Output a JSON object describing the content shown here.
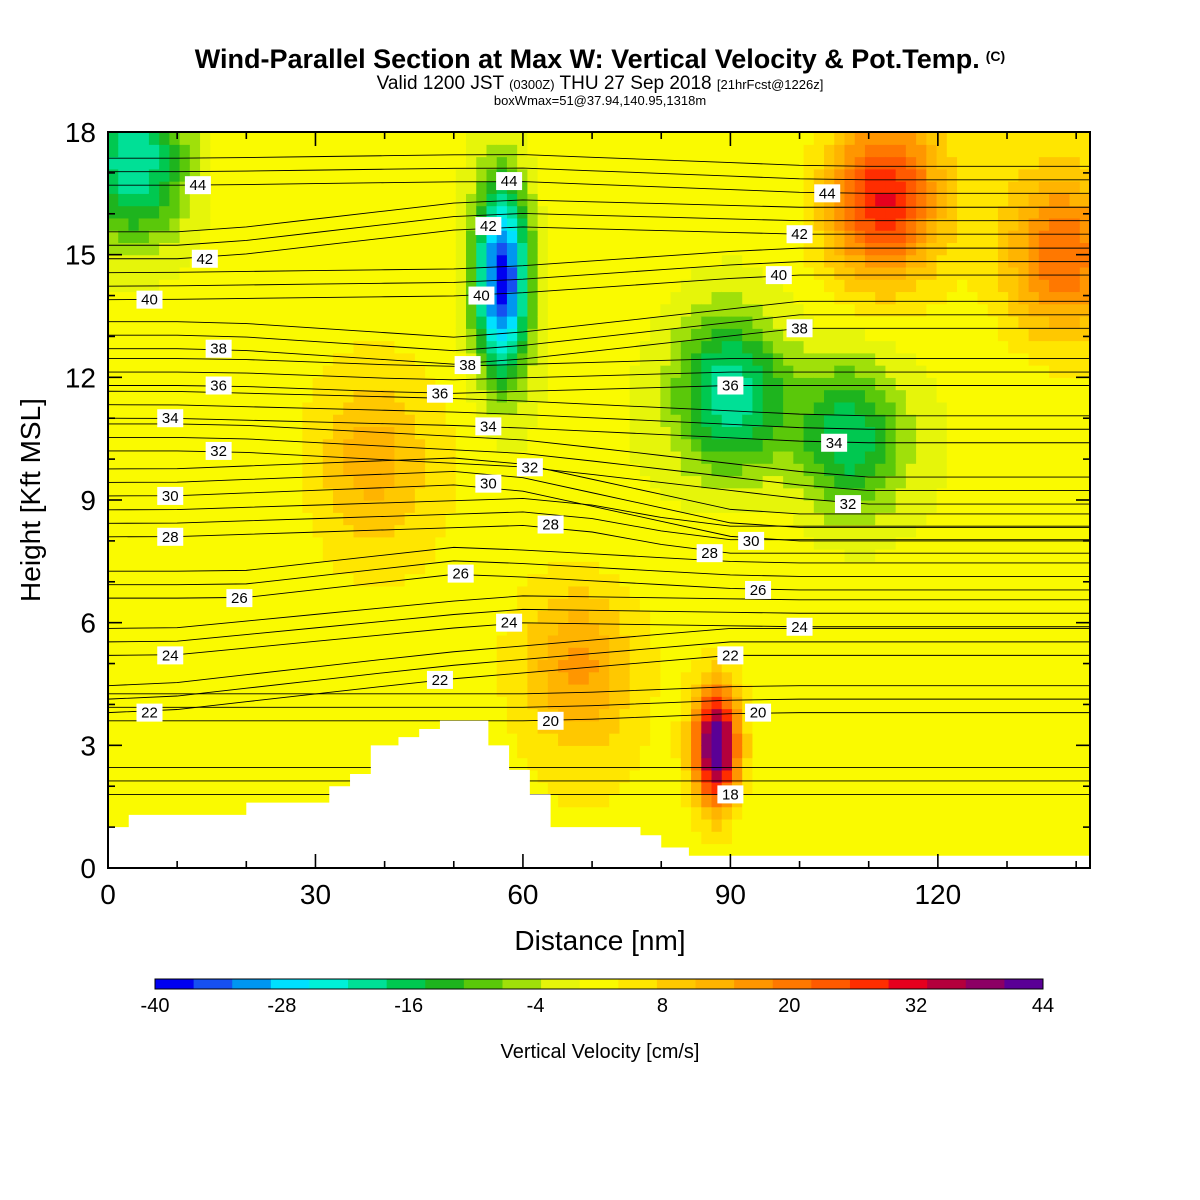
{
  "header": {
    "title": "Wind-Parallel Section at Max W: Vertical Velocity & Pot.Temp.",
    "copyright": "(C)",
    "valid_prefix": "Valid 1200 JST",
    "valid_utc": "(0300Z)",
    "valid_date": "THU 27 Sep 2018",
    "forecast": "[21hrFcst@1226z]",
    "box_info": "boxWmax=51@37.94,140.95,1318m"
  },
  "chart_data": {
    "type": "heatmap",
    "xlabel": "Distance [nm]",
    "ylabel": "Height [Kft MSL]",
    "xlim": [
      0,
      142
    ],
    "ylim": [
      0,
      18
    ],
    "x_ticks": [
      0,
      30,
      60,
      90,
      120
    ],
    "y_ticks": [
      0,
      3,
      6,
      9,
      12,
      15,
      18
    ],
    "grid": false,
    "colorbar": {
      "label": "Vertical Velocity [cm/s]",
      "range": [
        -40,
        44
      ],
      "tick_labels": [
        "-40",
        "-28",
        "-16",
        "-4",
        "8",
        "20",
        "32",
        "44"
      ],
      "colors": [
        "#0000f0",
        "#1650f0",
        "#0096f0",
        "#00e0ff",
        "#00f0d8",
        "#00e096",
        "#00c850",
        "#1eb41e",
        "#5ac80a",
        "#a0e00a",
        "#e6f50a",
        "#fafa00",
        "#ffe600",
        "#ffc800",
        "#ffb400",
        "#ff9600",
        "#ff7800",
        "#ff5a00",
        "#ff2d00",
        "#e6001e",
        "#b4003c",
        "#8c0064",
        "#5a0096"
      ]
    },
    "vertical_velocity_features": [
      {
        "name": "downdraft core",
        "x": 57,
        "y": 14.4,
        "value": -40
      },
      {
        "name": "downdraft",
        "x": 90,
        "y": 11.6,
        "value": -24
      },
      {
        "name": "downdraft",
        "x": 4,
        "y": 17.3,
        "value": -24
      },
      {
        "name": "downdraft",
        "x": 107,
        "y": 10.5,
        "value": -20
      },
      {
        "name": "updraft core",
        "x": 88,
        "y": 3.0,
        "value": 44
      },
      {
        "name": "updraft",
        "x": 112,
        "y": 16.4,
        "value": 28
      },
      {
        "name": "updraft",
        "x": 138,
        "y": 15.0,
        "value": 20
      },
      {
        "name": "updraft",
        "x": 68,
        "y": 5.0,
        "value": 14
      },
      {
        "name": "updraft",
        "x": 38,
        "y": 10.0,
        "value": 10
      }
    ],
    "terrain_profile": {
      "x": [
        0,
        3,
        3,
        20,
        20,
        32,
        32,
        35,
        35,
        38,
        38,
        42,
        42,
        45,
        45,
        48,
        48,
        55,
        55,
        58,
        58,
        61,
        61,
        64,
        64,
        77,
        77,
        80,
        80,
        84,
        84,
        142
      ],
      "height": [
        1.0,
        1.0,
        1.3,
        1.3,
        1.6,
        1.6,
        2.0,
        2.0,
        2.3,
        2.3,
        3.0,
        3.0,
        3.2,
        3.2,
        3.4,
        3.4,
        3.6,
        3.6,
        3.0,
        3.0,
        2.4,
        2.4,
        1.8,
        1.8,
        1.0,
        1.0,
        0.8,
        0.8,
        0.5,
        0.5,
        0.3,
        0.3
      ]
    },
    "contour_series": {
      "name": "Pot.Temp.",
      "levels": [
        18,
        20,
        22,
        24,
        26,
        28,
        30,
        32,
        34,
        36,
        38,
        40,
        42,
        44
      ],
      "labels": [
        {
          "text": "44",
          "x": 13,
          "y": 16.7
        },
        {
          "text": "44",
          "x": 58,
          "y": 16.8
        },
        {
          "text": "44",
          "x": 104,
          "y": 16.5
        },
        {
          "text": "42",
          "x": 14,
          "y": 14.9
        },
        {
          "text": "42",
          "x": 55,
          "y": 15.7
        },
        {
          "text": "42",
          "x": 100,
          "y": 15.5
        },
        {
          "text": "40",
          "x": 6,
          "y": 13.9
        },
        {
          "text": "40",
          "x": 54,
          "y": 14.0
        },
        {
          "text": "40",
          "x": 97,
          "y": 14.5
        },
        {
          "text": "38",
          "x": 16,
          "y": 12.7
        },
        {
          "text": "38",
          "x": 52,
          "y": 12.3
        },
        {
          "text": "38",
          "x": 100,
          "y": 13.2
        },
        {
          "text": "36",
          "x": 16,
          "y": 11.8
        },
        {
          "text": "36",
          "x": 48,
          "y": 11.6
        },
        {
          "text": "36",
          "x": 90,
          "y": 11.8
        },
        {
          "text": "34",
          "x": 9,
          "y": 11.0
        },
        {
          "text": "34",
          "x": 55,
          "y": 10.8
        },
        {
          "text": "34",
          "x": 105,
          "y": 10.4
        },
        {
          "text": "32",
          "x": 16,
          "y": 10.2
        },
        {
          "text": "32",
          "x": 61,
          "y": 9.8
        },
        {
          "text": "32",
          "x": 107,
          "y": 8.9
        },
        {
          "text": "30",
          "x": 9,
          "y": 9.1
        },
        {
          "text": "30",
          "x": 55,
          "y": 9.4
        },
        {
          "text": "30",
          "x": 93,
          "y": 8.0
        },
        {
          "text": "28",
          "x": 9,
          "y": 8.1
        },
        {
          "text": "28",
          "x": 64,
          "y": 8.4
        },
        {
          "text": "28",
          "x": 87,
          "y": 7.7
        },
        {
          "text": "26",
          "x": 19,
          "y": 6.6
        },
        {
          "text": "26",
          "x": 51,
          "y": 7.2
        },
        {
          "text": "26",
          "x": 94,
          "y": 6.8
        },
        {
          "text": "24",
          "x": 9,
          "y": 5.2
        },
        {
          "text": "24",
          "x": 58,
          "y": 6.0
        },
        {
          "text": "24",
          "x": 100,
          "y": 5.9
        },
        {
          "text": "22",
          "x": 6,
          "y": 3.8
        },
        {
          "text": "22",
          "x": 48,
          "y": 4.6
        },
        {
          "text": "22",
          "x": 90,
          "y": 5.2
        },
        {
          "text": "20",
          "x": 64,
          "y": 3.6
        },
        {
          "text": "20",
          "x": 94,
          "y": 3.8
        },
        {
          "text": "18",
          "x": 90,
          "y": 1.8
        }
      ]
    }
  }
}
